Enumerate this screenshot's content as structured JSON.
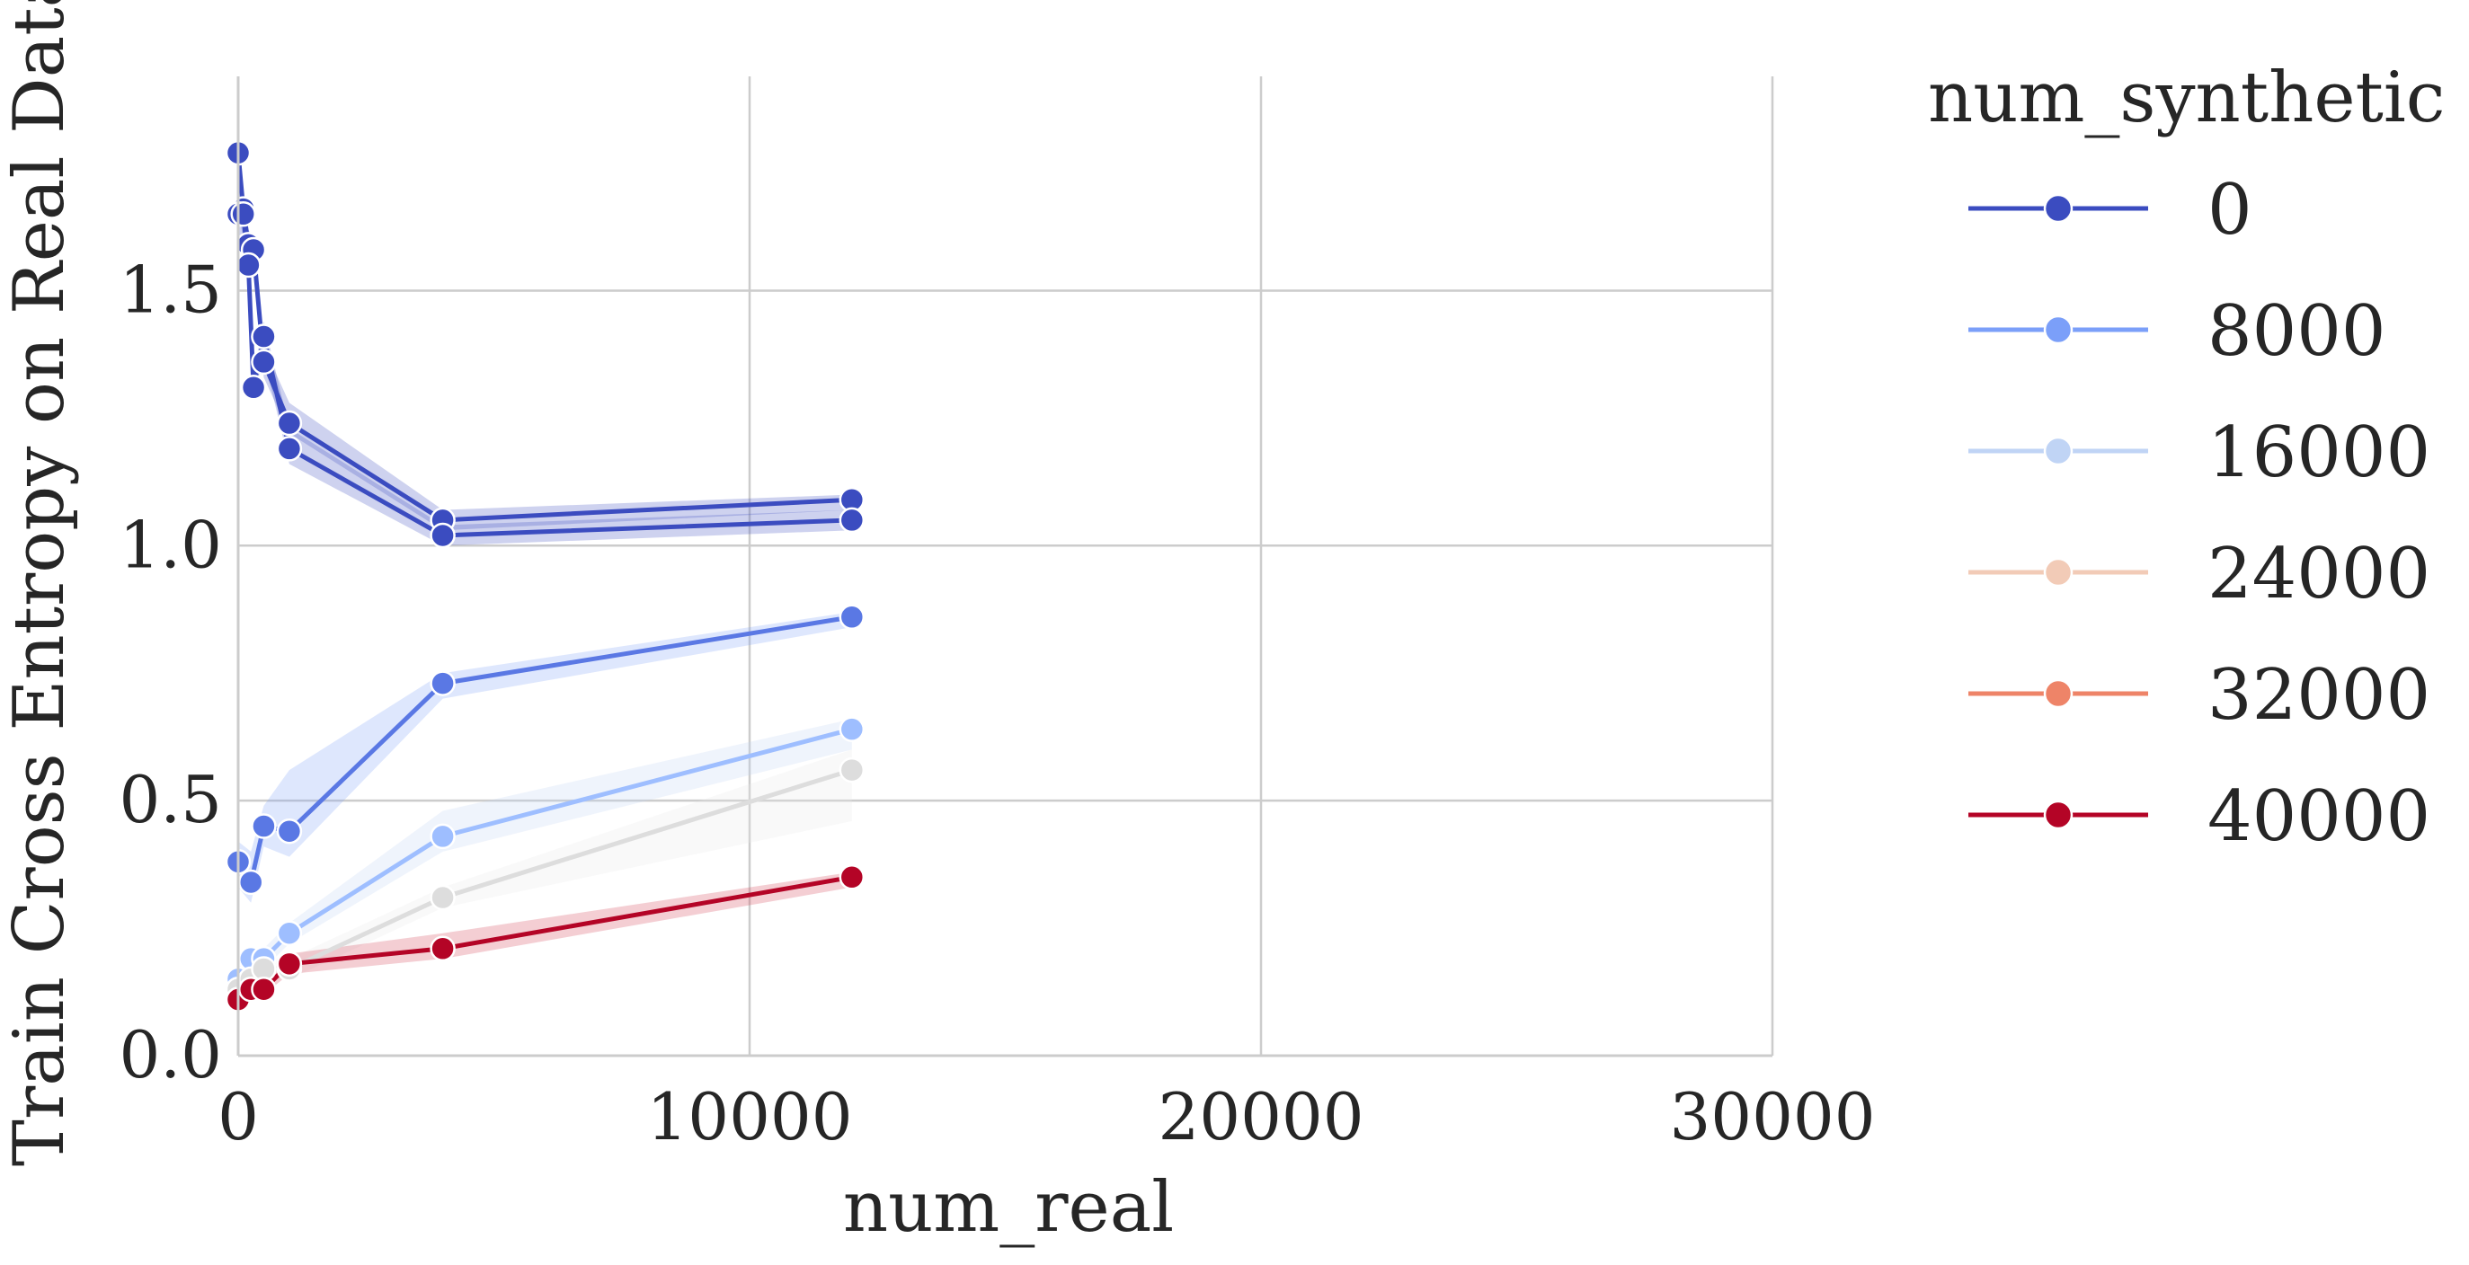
{
  "chart_data": {
    "type": "line",
    "title": "",
    "xlabel": "num_real",
    "ylabel": "Train Cross Entropy on Real Data",
    "xlim": [
      0,
      30000
    ],
    "ylim": [
      0,
      1.92
    ],
    "xticks": [
      0,
      10000,
      20000,
      30000
    ],
    "xtick_labels": [
      "0",
      "10000",
      "20000",
      "30000"
    ],
    "yticks": [
      0.0,
      0.5,
      1.0,
      1.5
    ],
    "ytick_labels": [
      "0.0",
      "0.5",
      "1.0",
      "1.5"
    ],
    "grid": true,
    "legend_title": "num_synthetic",
    "legend_position": "outside-right",
    "series": [
      {
        "name": "0",
        "color": "#3b4cc0",
        "band_color": "#3b4cc0",
        "lines": [
          {
            "points": [
              [
                0,
                1.77
              ],
              [
                100,
                1.66
              ],
              [
                200,
                1.59
              ],
              [
                300,
                1.58
              ],
              [
                500,
                1.36
              ],
              [
                1000,
                1.24
              ],
              [
                4000,
                1.05
              ],
              [
                12000,
                1.09
              ]
            ],
            "lower": [
              1.66,
              1.6,
              1.55,
              1.54,
              1.33,
              1.22,
              1.03,
              1.07
            ],
            "upper": [
              1.82,
              1.7,
              1.62,
              1.6,
              1.39,
              1.28,
              1.07,
              1.1
            ]
          },
          {
            "points": [
              [
                0,
                1.65
              ],
              [
                100,
                1.65
              ],
              [
                200,
                1.55
              ],
              [
                300,
                1.31
              ],
              [
                500,
                1.41
              ],
              [
                1000,
                1.19
              ],
              [
                4000,
                1.02
              ],
              [
                12000,
                1.05
              ]
            ],
            "lower": [
              1.6,
              1.6,
              1.5,
              1.29,
              1.37,
              1.16,
              1.0,
              1.03
            ],
            "upper": [
              1.7,
              1.69,
              1.6,
              1.34,
              1.44,
              1.23,
              1.04,
              1.07
            ]
          }
        ]
      },
      {
        "name": "8000",
        "color": "#5a78e4",
        "band_color": "#7b9ff9",
        "lines": [
          {
            "points": [
              [
                0,
                0.38
              ],
              [
                250,
                0.34
              ],
              [
                500,
                0.45
              ],
              [
                1000,
                0.44
              ],
              [
                4000,
                0.73
              ],
              [
                12000,
                0.86
              ]
            ],
            "lower": [
              0.33,
              0.3,
              0.41,
              0.39,
              0.7,
              0.84
            ],
            "upper": [
              0.42,
              0.4,
              0.49,
              0.56,
              0.75,
              0.87
            ]
          }
        ]
      },
      {
        "name": "16000",
        "color": "#9ebeff",
        "band_color": "#c0d4f5",
        "lines": [
          {
            "points": [
              [
                0,
                0.15
              ],
              [
                250,
                0.19
              ],
              [
                500,
                0.19
              ],
              [
                1000,
                0.24
              ],
              [
                4000,
                0.43
              ],
              [
                12000,
                0.64
              ]
            ],
            "lower": [
              0.13,
              0.17,
              0.17,
              0.22,
              0.4,
              0.6
            ],
            "upper": [
              0.17,
              0.21,
              0.21,
              0.26,
              0.48,
              0.66
            ]
          }
        ]
      },
      {
        "name": "24000",
        "color": "#dddddd",
        "band_color": "#e8e8e8",
        "lines": [
          {
            "points": [
              [
                0,
                0.13
              ],
              [
                250,
                0.15
              ],
              [
                500,
                0.17
              ],
              [
                1000,
                0.17
              ],
              [
                4000,
                0.31
              ],
              [
                12000,
                0.56
              ]
            ],
            "lower": [
              0.11,
              0.13,
              0.15,
              0.15,
              0.29,
              0.46
            ],
            "upper": [
              0.15,
              0.17,
              0.19,
              0.19,
              0.33,
              0.6
            ]
          }
        ]
      },
      {
        "name": "32000",
        "color": "#f08b6e",
        "band_color": "#f4a98f",
        "lines": []
      },
      {
        "name": "40000",
        "color": "#b40426",
        "band_color": "#d23c4f",
        "lines": [
          {
            "points": [
              [
                0,
                0.11
              ],
              [
                250,
                0.13
              ],
              [
                500,
                0.13
              ],
              [
                1000,
                0.18
              ],
              [
                4000,
                0.21
              ],
              [
                12000,
                0.35
              ]
            ],
            "lower": [
              0.1,
              0.11,
              0.12,
              0.16,
              0.19,
              0.33
            ],
            "upper": [
              0.12,
              0.14,
              0.15,
              0.2,
              0.24,
              0.36
            ]
          }
        ]
      }
    ]
  },
  "legend": {
    "title": "num_synthetic",
    "items": [
      {
        "label": "0",
        "color": "#3b4cc0"
      },
      {
        "label": "8000",
        "color": "#7b9ff9"
      },
      {
        "label": "16000",
        "color": "#c0d4f5"
      },
      {
        "label": "24000",
        "color": "#f2cbb7"
      },
      {
        "label": "32000",
        "color": "#ee8468"
      },
      {
        "label": "40000",
        "color": "#b40426"
      }
    ]
  },
  "colors": {
    "grid": "#cccccc",
    "axis": "#cccccc",
    "background": "#ffffff"
  }
}
